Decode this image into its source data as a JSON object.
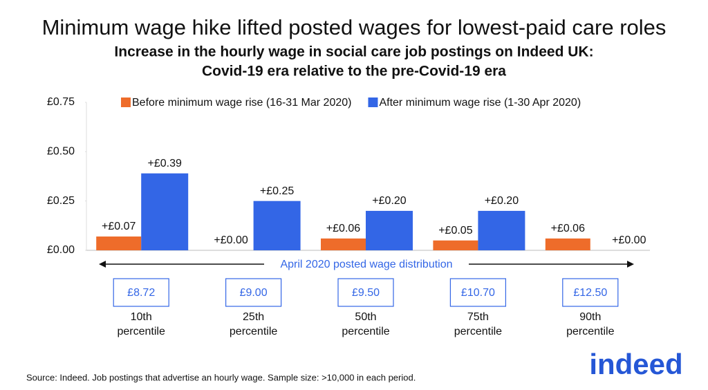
{
  "chart_data": {
    "type": "bar",
    "title": "Minimum wage hike lifted posted wages for lowest-paid care roles",
    "subtitle": [
      "Increase in the hourly wage in social care job postings on Indeed UK:",
      "Covid-19 era relative to the pre-Covid-19 era"
    ],
    "categories": [
      "10th percentile",
      "25th percentile",
      "50th percentile",
      "75th percentile",
      "90th percentile"
    ],
    "wage_labels": [
      "£8.72",
      "£9.00",
      "£9.50",
      "£10.70",
      "£12.50"
    ],
    "annotation": "April 2020 posted wage distribution",
    "series": [
      {
        "name": "Before minimum wage rise (16-31 Mar 2020)",
        "color": "#ee6c2a",
        "values": [
          0.07,
          0,
          0.06,
          0.05,
          0.06
        ],
        "value_labels": [
          "+£0.07",
          "+£0.00",
          "+£0.06",
          "+£0.05",
          "+£0.06"
        ]
      },
      {
        "name": "After minimum wage rise (1-30 Apr 2020)",
        "color": "#3366e6",
        "values": [
          0.39,
          0.25,
          0.2,
          0.2,
          0
        ],
        "value_labels": [
          "+£0.39",
          "+£0.25",
          "+£0.20",
          "+£0.20",
          "+£0.00"
        ]
      }
    ],
    "ylim": [
      0,
      0.75
    ],
    "yticks": [
      {
        "value": 0,
        "label": "£0.00"
      },
      {
        "value": 0.25,
        "label": "£0.25"
      },
      {
        "value": 0.5,
        "label": "£0.50"
      },
      {
        "value": 0.75,
        "label": "£0.75"
      }
    ],
    "grid": false,
    "legend": "top",
    "source": "Source: Indeed. Job postings that advertise an hourly wage. Sample size: >10,000 in each period.",
    "logo": "indeed"
  }
}
